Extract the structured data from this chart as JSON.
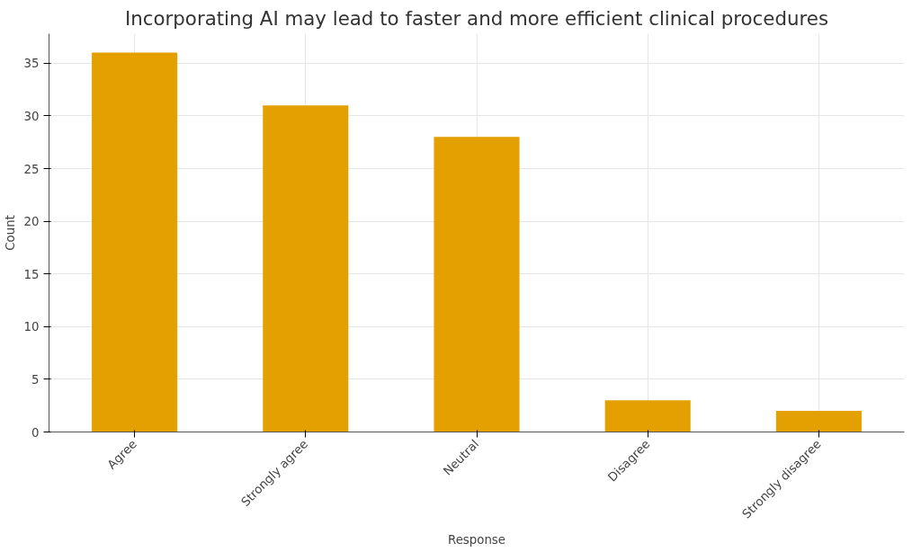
{
  "chart_data": {
    "type": "bar",
    "title": "Incorporating AI may lead to faster and more efficient clinical procedures",
    "xlabel": "Response",
    "ylabel": "Count",
    "categories": [
      "Agree",
      "Strongly agree",
      "Neutral",
      "Disagree",
      "Strongly disagree"
    ],
    "values": [
      36,
      31,
      28,
      3,
      2
    ],
    "color": "#e3a000",
    "ylim": [
      0,
      37.8
    ],
    "yticks": [
      0,
      5,
      10,
      15,
      20,
      25,
      30,
      35
    ],
    "grid": true
  }
}
